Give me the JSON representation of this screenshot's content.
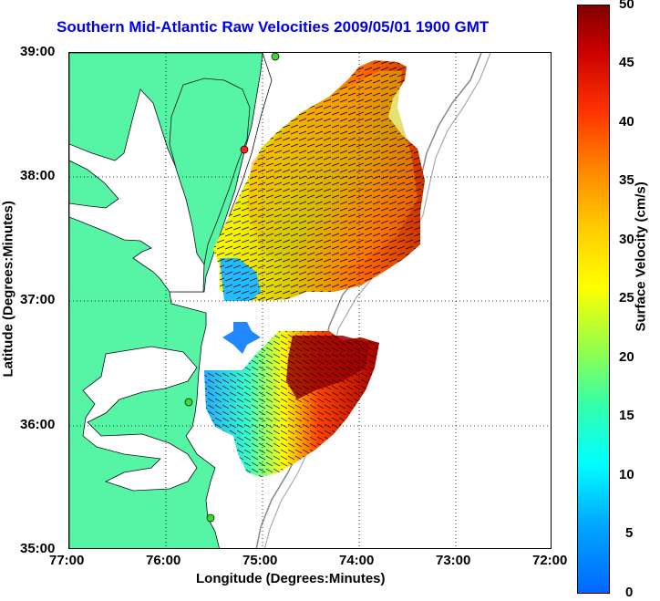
{
  "title": "Southern Mid-Atlantic Raw Velocities 2009/05/01 1900 GMT",
  "axes": {
    "xlabel": "Longitude (Degrees:Minutes)",
    "ylabel": "Latitude (Degrees:Minutes)",
    "xticks": [
      "77:00",
      "76:00",
      "75:00",
      "74:00",
      "73:00",
      "72:00"
    ],
    "yticks": [
      "39:00",
      "38:00",
      "37:00",
      "36:00",
      "35:00"
    ]
  },
  "colorbar": {
    "label": "Surface Velocity (cm/s)",
    "ticks": [
      "50",
      "45",
      "40",
      "35",
      "30",
      "25",
      "20",
      "15",
      "10",
      "5",
      "0"
    ],
    "min": 0,
    "max": 50
  },
  "colors": {
    "land": "#55f5a5",
    "title": "#0000ee",
    "site_marker": "#33dd33",
    "site_marker_red": "#ff2222"
  },
  "map": {
    "lon_range": [
      -77,
      -72
    ],
    "lat_range": [
      35,
      39
    ],
    "grid": "dotted"
  }
}
